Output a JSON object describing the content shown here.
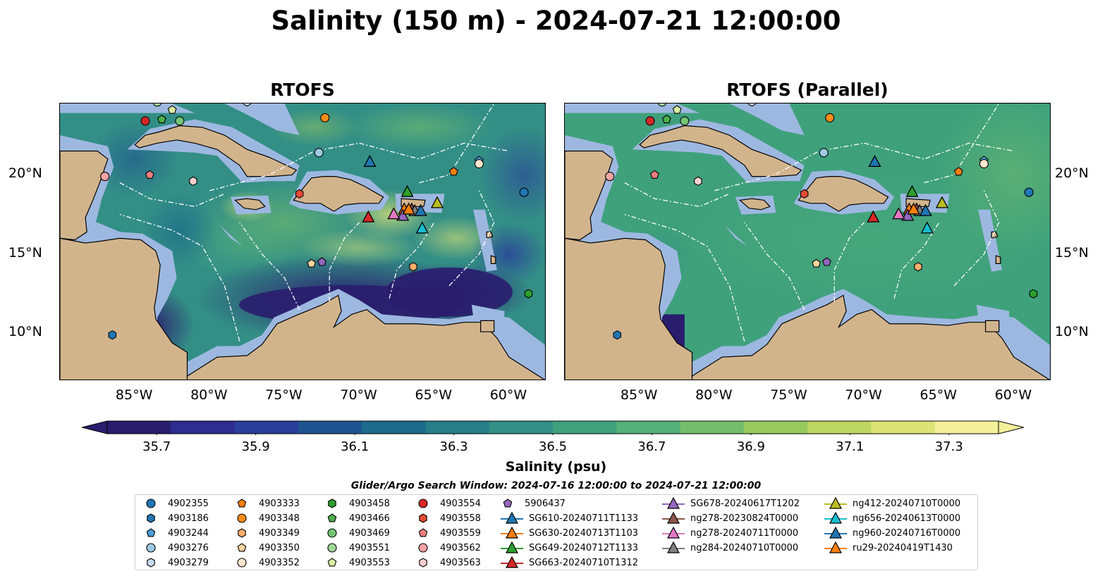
{
  "title": "Salinity (150 m) - 2024-07-21 12:00:00",
  "panels": [
    {
      "title": "RTOFS",
      "variant": "rtofs"
    },
    {
      "title": "RTOFS (Parallel)",
      "variant": "parallel"
    }
  ],
  "axes": {
    "lon_range": [
      -90,
      -57.5
    ],
    "lat_range": [
      7,
      24.5
    ],
    "xticks": [
      "85°W",
      "80°W",
      "75°W",
      "70°W",
      "65°W",
      "60°W"
    ],
    "yticks": [
      "20°N",
      "15°N",
      "10°N"
    ],
    "xtick_values": [
      -85,
      -80,
      -75,
      -70,
      -65,
      -60
    ],
    "ytick_values": [
      20,
      15,
      10
    ]
  },
  "colorbar": {
    "label": "Salinity (psu)",
    "ticks": [
      "35.7",
      "35.9",
      "36.1",
      "36.3",
      "36.5",
      "36.7",
      "36.9",
      "37.1",
      "37.3"
    ],
    "min": 35.6,
    "max": 37.4,
    "colors": [
      "#2a1d6e",
      "#2d2c8f",
      "#2a3e9a",
      "#1f5390",
      "#1d6a8a",
      "#277e89",
      "#338f86",
      "#3fa17c",
      "#55b07a",
      "#75bd6c",
      "#98c95f",
      "#bed664",
      "#dce377",
      "#f3ef9a"
    ]
  },
  "search_window": "Glider/Argo Search Window: 2024-07-16 12:00:00 to 2024-07-21 12:00:00",
  "legend": {
    "argo": [
      {
        "id": "4902355",
        "marker": "circle",
        "color": "#1f77b4",
        "lon": -59,
        "lat": 18.9
      },
      {
        "id": "4903186",
        "marker": "hexagon",
        "color": "#1f77b4",
        "lon": -86.5,
        "lat": 9.9
      },
      {
        "id": "4903244",
        "marker": "pentagon",
        "color": "#4a9fd8",
        "lon": -62,
        "lat": 20.9
      },
      {
        "id": "4903276",
        "marker": "circle",
        "color": "#9ecae1",
        "lon": -72.7,
        "lat": 21.4
      },
      {
        "id": "4903279",
        "marker": "hexagon",
        "color": "#c6dbef",
        "lon": -77.5,
        "lat": 24.6
      },
      {
        "id": "4903333",
        "marker": "pentagon",
        "color": "#ff7f0e",
        "lon": -63.7,
        "lat": 20.2
      },
      {
        "id": "4903348",
        "marker": "circle",
        "color": "#ff8c1a",
        "lon": -72.3,
        "lat": 23.6
      },
      {
        "id": "4903349",
        "marker": "hexagon",
        "color": "#fdae6b",
        "lon": -66.4,
        "lat": 14.2
      },
      {
        "id": "4903350",
        "marker": "pentagon",
        "color": "#fdd49e",
        "lon": -73.2,
        "lat": 14.4
      },
      {
        "id": "4903352",
        "marker": "circle",
        "color": "#fee6ce",
        "lon": -62,
        "lat": 20.7
      },
      {
        "id": "4903458",
        "marker": "hexagon",
        "color": "#2ca02c",
        "lon": -58.7,
        "lat": 12.5
      },
      {
        "id": "4903466",
        "marker": "pentagon",
        "color": "#4daf4a",
        "lon": -83.2,
        "lat": 23.5
      },
      {
        "id": "4903469",
        "marker": "circle",
        "color": "#74c476",
        "lon": -82,
        "lat": 23.4
      },
      {
        "id": "4903551",
        "marker": "circle",
        "color": "#a1d99b",
        "lon": -83.5,
        "lat": 24.6
      },
      {
        "id": "4903553",
        "marker": "pentagon",
        "color": "#d9f0a3",
        "lon": -82.5,
        "lat": 24.1
      },
      {
        "id": "4903554",
        "marker": "circle",
        "color": "#d62728",
        "lon": -84.3,
        "lat": 23.4
      },
      {
        "id": "4903558",
        "marker": "hexagon",
        "color": "#e34a33",
        "lon": -74,
        "lat": 18.8
      },
      {
        "id": "4903559",
        "marker": "pentagon",
        "color": "#f08080",
        "lon": -84,
        "lat": 20
      },
      {
        "id": "4903562",
        "marker": "circle",
        "color": "#f4a3a3",
        "lon": -87,
        "lat": 19.9
      },
      {
        "id": "4903563",
        "marker": "hexagon",
        "color": "#fcd0d0",
        "lon": -81.1,
        "lat": 19.6
      },
      {
        "id": "5906437",
        "marker": "pentagon",
        "color": "#9467bd",
        "lon": -72.5,
        "lat": 14.5
      }
    ],
    "gliders": [
      {
        "id": "SG610-20240711T1133",
        "color": "#1f77b4",
        "lon": -69.3,
        "lat": 20.8
      },
      {
        "id": "SG630-20240713T1103",
        "color": "#ff7f0e",
        "lon": -67,
        "lat": 17.8
      },
      {
        "id": "SG649-20240712T1133",
        "color": "#2ca02c",
        "lon": -66.8,
        "lat": 18.9
      },
      {
        "id": "SG663-20240710T1312",
        "color": "#d62728",
        "lon": -69.4,
        "lat": 17.3
      },
      {
        "id": "SG678-20240617T1202",
        "color": "#9467bd",
        "lon": -67.1,
        "lat": 17.4
      },
      {
        "id": "ng278-20230824T0000",
        "color": "#8c564b",
        "lon": -66.5,
        "lat": 17.8
      },
      {
        "id": "ng278-20240711T0000",
        "color": "#e377c2",
        "lon": -67.7,
        "lat": 17.5
      },
      {
        "id": "ng284-20240710T0000",
        "color": "#7f7f7f",
        "lon": -66.3,
        "lat": 17.7
      },
      {
        "id": "ng412-20240710T0000",
        "color": "#bcbd22",
        "lon": -64.8,
        "lat": 18.2
      },
      {
        "id": "ng656-20240613T0000",
        "color": "#17becf",
        "lon": -65.8,
        "lat": 16.6
      },
      {
        "id": "ng960-20240716T0000",
        "color": "#1f77b4",
        "lon": -65.9,
        "lat": 17.7
      },
      {
        "id": "ru29-20240419T1430",
        "color": "#ff7f0e",
        "lon": -66.7,
        "lat": 17.8
      }
    ]
  }
}
